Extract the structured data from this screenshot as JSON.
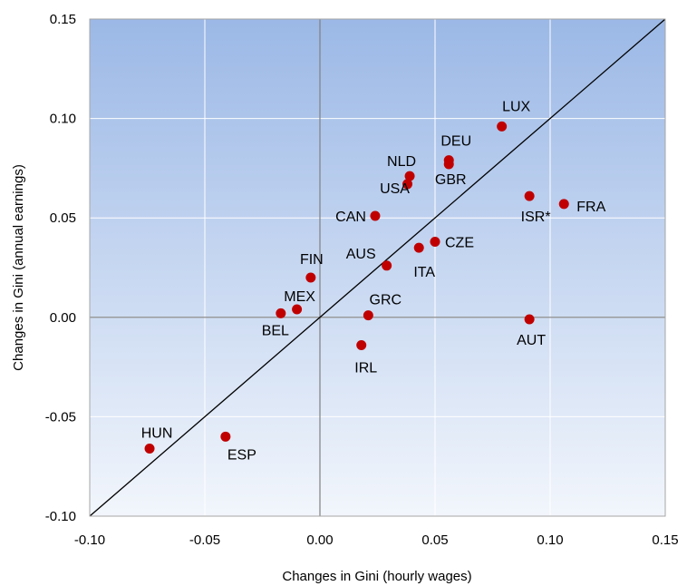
{
  "chart_data": {
    "type": "scatter",
    "title": "",
    "xlabel": "Changes in Gini (hourly wages)",
    "ylabel": "Changes in Gini (annual earnings)",
    "xlim": [
      -0.1,
      0.15
    ],
    "ylim": [
      -0.1,
      0.15
    ],
    "xticks": [
      "-0.10",
      "-0.05",
      "0.00",
      "0.05",
      "0.10",
      "0.15"
    ],
    "yticks": [
      "-0.10",
      "-0.05",
      "0.00",
      "0.05",
      "0.10",
      "0.15"
    ],
    "grid": true,
    "reference_line": "45-degree line (y = x)",
    "colors": {
      "marker": "#c00000",
      "background_top": "#9bb8e6",
      "background_bottom": "#f2f6fc",
      "grid": "#ffffff",
      "zero_line": "#808080"
    },
    "points": [
      {
        "label": "LUX",
        "x": 0.079,
        "y": 0.096
      },
      {
        "label": "DEU",
        "x": 0.056,
        "y": 0.079
      },
      {
        "label": "GBR",
        "x": 0.056,
        "y": 0.077
      },
      {
        "label": "NLD",
        "x": 0.039,
        "y": 0.071
      },
      {
        "label": "USA",
        "x": 0.038,
        "y": 0.067
      },
      {
        "label": "ISR*",
        "x": 0.091,
        "y": 0.061
      },
      {
        "label": "FRA",
        "x": 0.106,
        "y": 0.057
      },
      {
        "label": "CAN",
        "x": 0.024,
        "y": 0.051
      },
      {
        "label": "CZE",
        "x": 0.05,
        "y": 0.038
      },
      {
        "label": "ITA",
        "x": 0.043,
        "y": 0.035
      },
      {
        "label": "AUS",
        "x": 0.029,
        "y": 0.026
      },
      {
        "label": "FIN",
        "x": -0.004,
        "y": 0.02
      },
      {
        "label": "MEX",
        "x": -0.01,
        "y": 0.004
      },
      {
        "label": "BEL",
        "x": -0.017,
        "y": 0.002
      },
      {
        "label": "GRC",
        "x": 0.021,
        "y": 0.001
      },
      {
        "label": "AUT",
        "x": 0.091,
        "y": -0.001
      },
      {
        "label": "IRL",
        "x": 0.018,
        "y": -0.014
      },
      {
        "label": "HUN",
        "x": -0.074,
        "y": -0.066
      },
      {
        "label": "ESP",
        "x": -0.041,
        "y": -0.06
      }
    ]
  }
}
